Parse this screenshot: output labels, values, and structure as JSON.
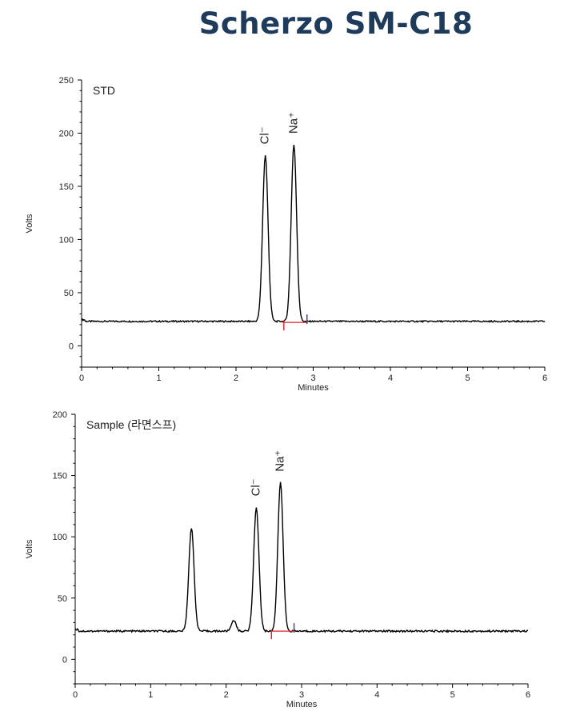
{
  "page": {
    "title": "Scherzo SM-C18"
  },
  "chart_data": [
    {
      "type": "line",
      "title": "STD",
      "xlabel": "Minutes",
      "ylabel": "Volts",
      "xlim": [
        0,
        6
      ],
      "ylim": [
        -20,
        250
      ],
      "xticks": [
        0,
        1,
        2,
        3,
        4,
        5,
        6
      ],
      "yticks": [
        0,
        50,
        100,
        150,
        200,
        250
      ],
      "grid": false,
      "baseline": 23,
      "peaks": [
        {
          "label": "Cl⁻",
          "time": 2.38,
          "height": 179
        },
        {
          "label": "Na⁺",
          "time": 2.75,
          "height": 189
        }
      ],
      "integration": {
        "start": 2.62,
        "end": 2.92,
        "value": 22
      }
    },
    {
      "type": "line",
      "title": "Sample (라면스프)",
      "xlabel": "Minutes",
      "ylabel": "Volts",
      "xlim": [
        0,
        6
      ],
      "ylim": [
        -20,
        200
      ],
      "xticks": [
        0,
        1,
        2,
        3,
        4,
        5,
        6
      ],
      "yticks": [
        0,
        50,
        100,
        150,
        200
      ],
      "grid": false,
      "baseline": 23,
      "peaks": [
        {
          "label": "",
          "time": 1.54,
          "height": 107
        },
        {
          "label": "",
          "time": 2.1,
          "height": 32
        },
        {
          "label": "Cl⁻",
          "time": 2.4,
          "height": 124
        },
        {
          "label": "Na⁺",
          "time": 2.72,
          "height": 144
        }
      ],
      "integration": {
        "start": 2.6,
        "end": 2.9,
        "value": 23
      }
    }
  ]
}
